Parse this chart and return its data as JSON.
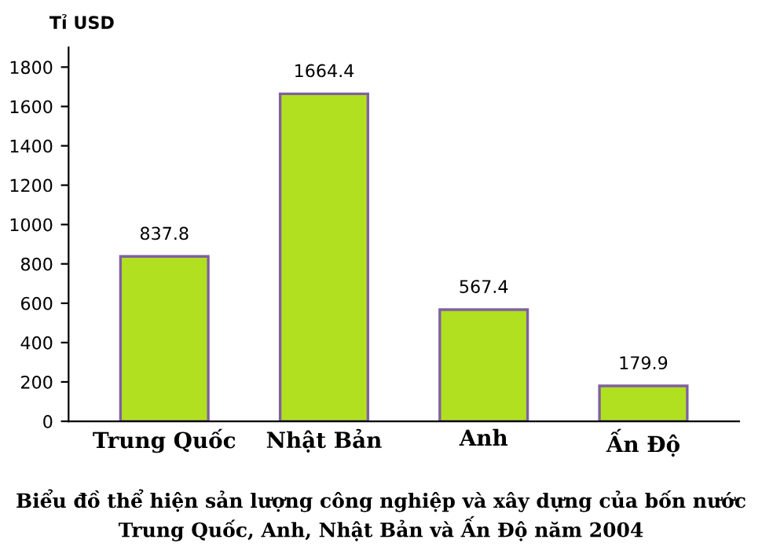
{
  "chart_data": {
    "type": "bar",
    "title": "Biểu đồ thể hiện sản lượng công nghiệp và xây dựng của bốn nước\nTrung Quốc, Anh, Nhật Bản và Ấn Độ năm 2004",
    "ylabel": "Tỉ USD",
    "categories": [
      "Trung Quốc",
      "Nhật Bản",
      "Anh",
      "Ấn Độ"
    ],
    "values": [
      837.8,
      1664.4,
      567.4,
      179.9
    ],
    "color": "#b0e020",
    "ylim": [
      0,
      1900
    ],
    "yticks": [
      0,
      200,
      400,
      600,
      800,
      1000,
      1200,
      1400,
      1600,
      1800
    ],
    "data_labels": true,
    "grid": false
  }
}
